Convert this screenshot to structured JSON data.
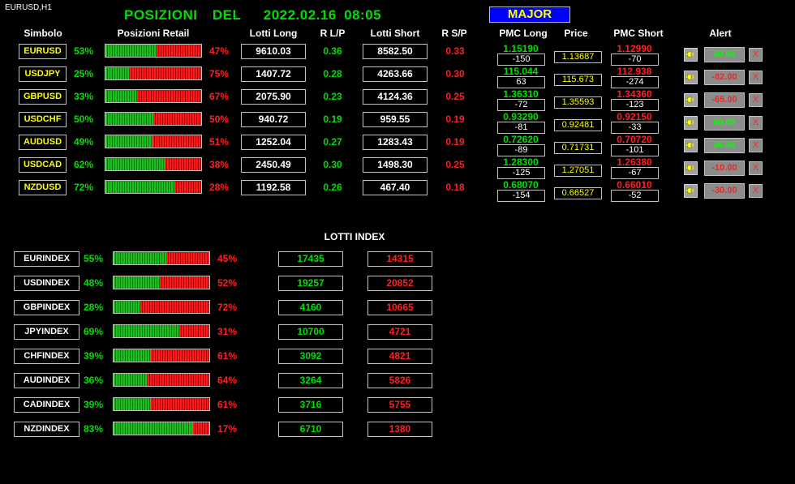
{
  "chart_label": "EURUSD,H1",
  "title": "POSIZIONI  DEL   2022.02.16 08:05",
  "major_label": "MAJOR",
  "headers": {
    "simbolo": "Simbolo",
    "posizioni": "Posizioni Retail",
    "lotti_long": "Lotti Long",
    "rlp": "R L/P",
    "lotti_short": "Lotti Short",
    "rsp": "R S/P",
    "pmc_long": "PMC Long",
    "price": "Price",
    "pmc_short": "PMC Short",
    "alert": "Alert"
  },
  "pairs": [
    {
      "symbol": "EURUSD",
      "long_pct": "53%",
      "short_pct": "47%",
      "long_frac": 0.53,
      "lotti_long": "9610.03",
      "rlp": "0.36",
      "lotti_short": "8582.50",
      "rsp": "0.33",
      "pmc_long": "1.15190",
      "pmc_long_diff": "-150",
      "price": "1.13687",
      "pmc_short": "1.12990",
      "pmc_short_diff": "-70",
      "alert": "30.00",
      "alert_color": "#00ff00"
    },
    {
      "symbol": "USDJPY",
      "long_pct": "25%",
      "short_pct": "75%",
      "long_frac": 0.25,
      "lotti_long": "1407.72",
      "rlp": "0.28",
      "lotti_short": "4263.66",
      "rsp": "0.30",
      "pmc_long": "115.044",
      "pmc_long_diff": "63",
      "price": "115.673",
      "pmc_short": "112.938",
      "pmc_short_diff": "-274",
      "alert": "-82.00",
      "alert_color": "#ff2020"
    },
    {
      "symbol": "GBPUSD",
      "long_pct": "33%",
      "short_pct": "67%",
      "long_frac": 0.33,
      "lotti_long": "2075.90",
      "rlp": "0.23",
      "lotti_short": "4124.36",
      "rsp": "0.25",
      "pmc_long": "1.36310",
      "pmc_long_diff": "-72",
      "price": "1.35593",
      "pmc_short": "1.34360",
      "pmc_short_diff": "-123",
      "alert": "-65.00",
      "alert_color": "#ff2020"
    },
    {
      "symbol": "USDCHF",
      "long_pct": "50%",
      "short_pct": "50%",
      "long_frac": 0.5,
      "lotti_long": "940.72",
      "rlp": "0.19",
      "lotti_short": "959.55",
      "rsp": "0.19",
      "pmc_long": "0.93290",
      "pmc_long_diff": "-81",
      "price": "0.92481",
      "pmc_short": "0.92150",
      "pmc_short_diff": "-33",
      "alert": "60.00",
      "alert_color": "#00ff00"
    },
    {
      "symbol": "AUDUSD",
      "long_pct": "49%",
      "short_pct": "51%",
      "long_frac": 0.49,
      "lotti_long": "1252.04",
      "rlp": "0.27",
      "lotti_short": "1283.43",
      "rsp": "0.19",
      "pmc_long": "0.72620",
      "pmc_long_diff": "-89",
      "price": "0.71731",
      "pmc_short": "0.70720",
      "pmc_short_diff": "-101",
      "alert": "36.00",
      "alert_color": "#00ff00"
    },
    {
      "symbol": "USDCAD",
      "long_pct": "62%",
      "short_pct": "38%",
      "long_frac": 0.62,
      "lotti_long": "2450.49",
      "rlp": "0.30",
      "lotti_short": "1498.30",
      "rsp": "0.25",
      "pmc_long": "1.28300",
      "pmc_long_diff": "-125",
      "price": "1.27051",
      "pmc_short": "1.26380",
      "pmc_short_diff": "-67",
      "alert": "-10.00",
      "alert_color": "#ff2020"
    },
    {
      "symbol": "NZDUSD",
      "long_pct": "72%",
      "short_pct": "28%",
      "long_frac": 0.72,
      "lotti_long": "1192.58",
      "rlp": "0.26",
      "lotti_short": "467.40",
      "rsp": "0.18",
      "pmc_long": "0.68070",
      "pmc_long_diff": "-154",
      "price": "0.66527",
      "pmc_short": "0.66010",
      "pmc_short_diff": "-52",
      "alert": "-30.00",
      "alert_color": "#ff2020"
    }
  ],
  "x_label": "X",
  "lotti_index_title": "LOTTI INDEX",
  "indexes": [
    {
      "name": "EURINDEX",
      "long_pct": "55%",
      "short_pct": "45%",
      "long_frac": 0.55,
      "long_lots": "17435",
      "short_lots": "14315"
    },
    {
      "name": "USDINDEX",
      "long_pct": "48%",
      "short_pct": "52%",
      "long_frac": 0.48,
      "long_lots": "19257",
      "short_lots": "20852"
    },
    {
      "name": "GBPINDEX",
      "long_pct": "28%",
      "short_pct": "72%",
      "long_frac": 0.28,
      "long_lots": "4160",
      "short_lots": "10665"
    },
    {
      "name": "JPYINDEX",
      "long_pct": "69%",
      "short_pct": "31%",
      "long_frac": 0.69,
      "long_lots": "10700",
      "short_lots": "4721"
    },
    {
      "name": "CHFINDEX",
      "long_pct": "39%",
      "short_pct": "61%",
      "long_frac": 0.39,
      "long_lots": "3092",
      "short_lots": "4821"
    },
    {
      "name": "AUDINDEX",
      "long_pct": "36%",
      "short_pct": "64%",
      "long_frac": 0.36,
      "long_lots": "3264",
      "short_lots": "5826"
    },
    {
      "name": "CADINDEX",
      "long_pct": "39%",
      "short_pct": "61%",
      "long_frac": 0.39,
      "long_lots": "3716",
      "short_lots": "5755"
    },
    {
      "name": "NZDINDEX",
      "long_pct": "83%",
      "short_pct": "17%",
      "long_frac": 0.83,
      "long_lots": "6710",
      "short_lots": "1380"
    }
  ],
  "colors": {
    "long": "#00e000",
    "short": "#ff2020",
    "symbol": "#ffff00",
    "major_bg": "#0000ff"
  }
}
